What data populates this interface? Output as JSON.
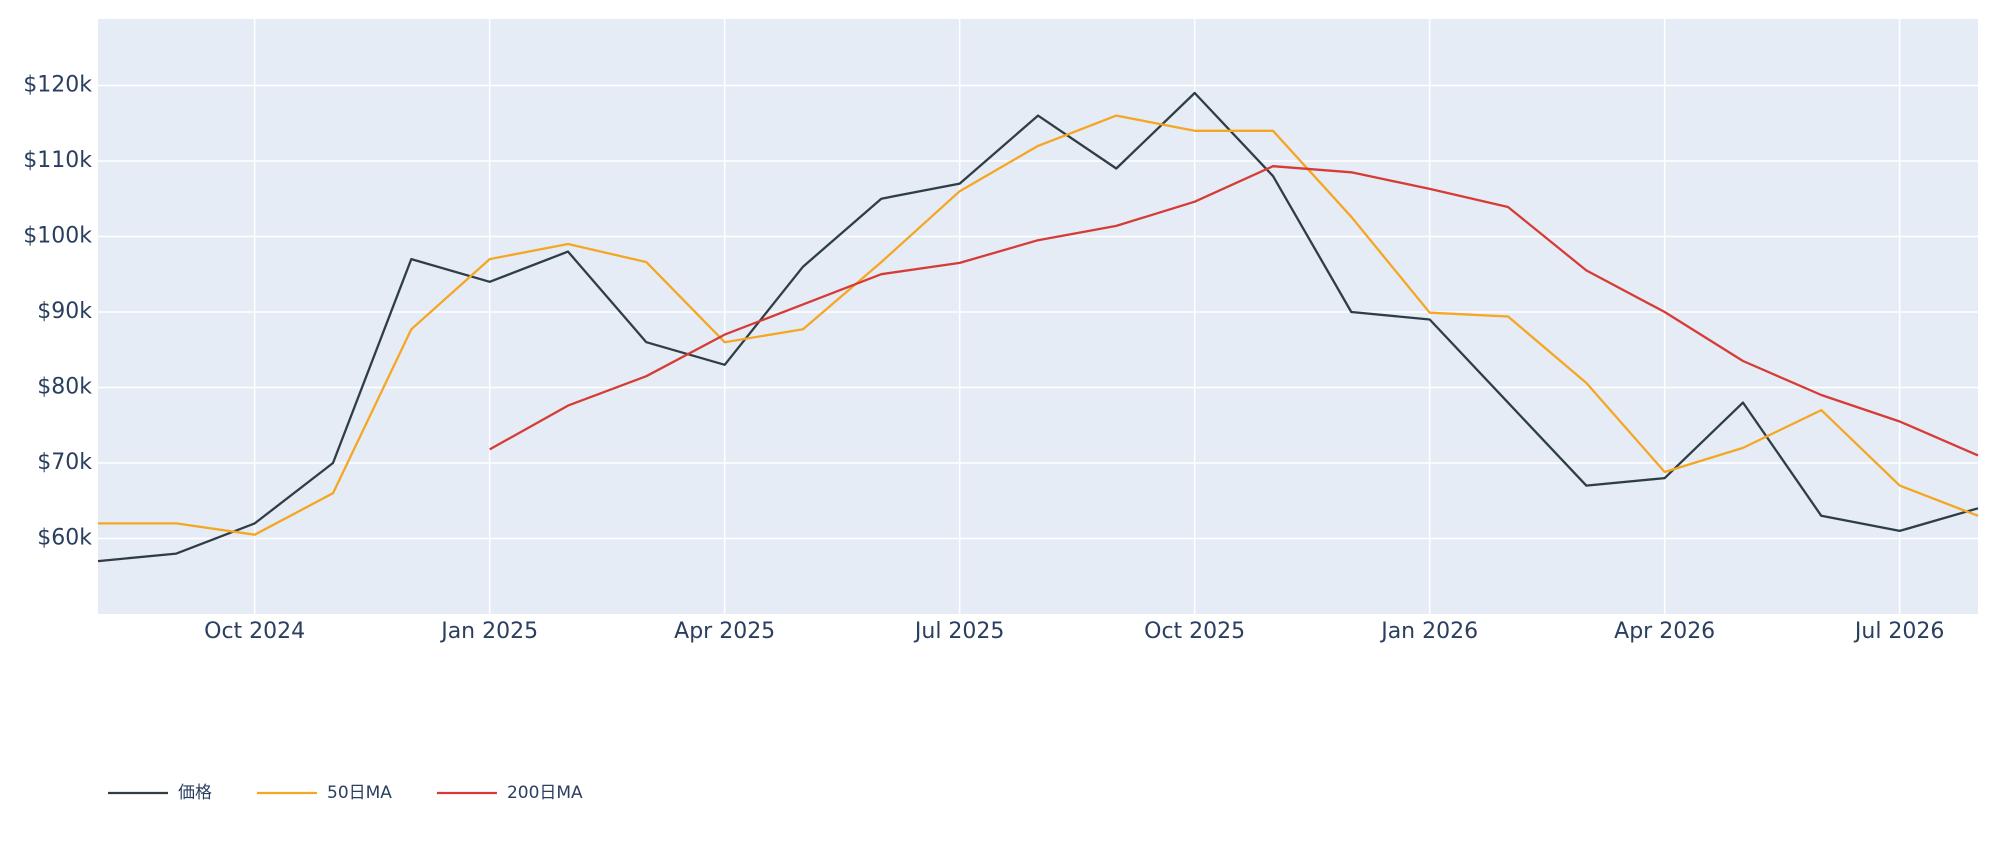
{
  "chart_data": {
    "type": "line",
    "x": [
      "2024-08",
      "2024-09",
      "2024-10",
      "2024-11",
      "2024-12",
      "2025-01",
      "2025-02",
      "2025-03",
      "2025-04",
      "2025-05",
      "2025-06",
      "2025-07",
      "2025-08",
      "2025-09",
      "2025-10",
      "2025-11",
      "2025-12",
      "2026-01",
      "2026-02",
      "2026-03",
      "2026-04",
      "2026-05",
      "2026-06",
      "2026-07",
      "2026-08"
    ],
    "series": [
      {
        "name": "価格",
        "color": "#2f3e46",
        "values": [
          57000,
          58000,
          62000,
          70000,
          97000,
          94000,
          98000,
          86000,
          83000,
          96000,
          105000,
          107000,
          116000,
          109000,
          119000,
          108000,
          90000,
          89000,
          78000,
          67000,
          68000,
          78000,
          63000,
          61000,
          64000
        ]
      },
      {
        "name": "50日MA",
        "color": "#f5a623",
        "values": [
          62000,
          62000,
          60500,
          66000,
          87700,
          97000,
          99000,
          96600,
          86000,
          87700,
          96600,
          106000,
          112000,
          116000,
          114000,
          114000,
          102600,
          89900,
          89400,
          80600,
          68800,
          72000,
          77000,
          67000,
          63000
        ]
      },
      {
        "name": "200日MA",
        "color": "#d63c35",
        "values": [
          null,
          null,
          null,
          null,
          null,
          71800,
          77600,
          81500,
          87000,
          91000,
          95000,
          96500,
          99500,
          101400,
          104600,
          109300,
          108500,
          106300,
          103900,
          95500,
          90000,
          83500,
          79000,
          75500,
          71000
        ]
      }
    ],
    "xlim": [
      "2024-08",
      "2026-08"
    ],
    "xticks": [
      {
        "value": "2024-10",
        "label": "Oct 2024"
      },
      {
        "value": "2025-01",
        "label": "Jan 2025"
      },
      {
        "value": "2025-04",
        "label": "Apr 2025"
      },
      {
        "value": "2025-07",
        "label": "Jul 2025"
      },
      {
        "value": "2025-10",
        "label": "Oct 2025"
      },
      {
        "value": "2026-01",
        "label": "Jan 2026"
      },
      {
        "value": "2026-04",
        "label": "Apr 2026"
      },
      {
        "value": "2026-07",
        "label": "Jul 2026"
      }
    ],
    "ylim": [
      50000,
      128800
    ],
    "yticks": [
      {
        "value": 60000,
        "label": "$60k"
      },
      {
        "value": 70000,
        "label": "$70k"
      },
      {
        "value": 80000,
        "label": "$80k"
      },
      {
        "value": 90000,
        "label": "$90k"
      },
      {
        "value": 100000,
        "label": "$100k"
      },
      {
        "value": 110000,
        "label": "$110k"
      },
      {
        "value": 120000,
        "label": "$120k"
      }
    ],
    "grid": true,
    "legend": "bottom-left"
  }
}
